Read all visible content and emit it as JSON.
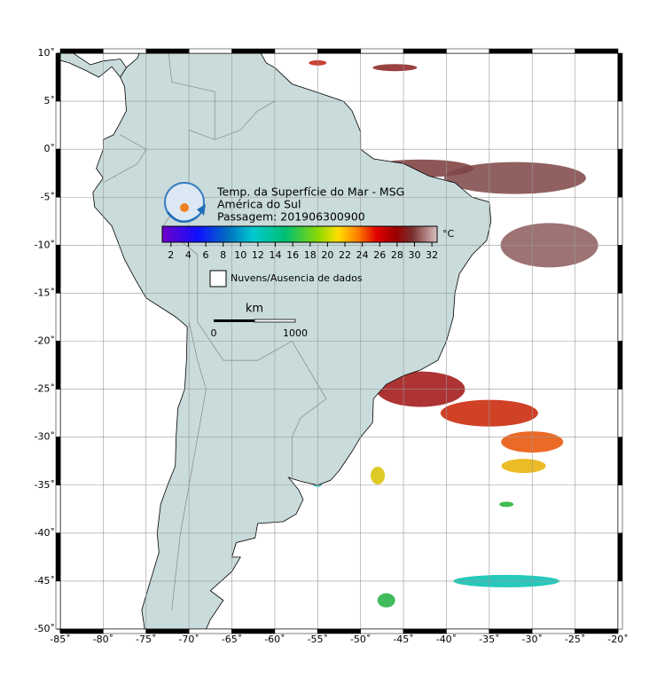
{
  "map": {
    "title_lines": [
      "Temp. da Superfície do Mar - MSG",
      "América do Sul",
      "Passagem: 201906300900"
    ],
    "colorbar": {
      "unit": "°C",
      "range": [
        1,
        32.6
      ],
      "ticks": [
        2,
        4,
        6,
        8,
        10,
        12,
        14,
        16,
        18,
        20,
        22,
        24,
        26,
        28,
        30,
        32
      ]
    },
    "legend": "Nuvens/Ausencia de dados",
    "scale_bar": {
      "unit": "km",
      "labels": [
        "0",
        "1000"
      ]
    },
    "lon_range": [
      -85,
      -20
    ],
    "lat_range": [
      -50,
      10
    ],
    "lon_ticks": [
      {
        "value": -85,
        "label": "-85˚"
      },
      {
        "value": -80,
        "label": "-80˚"
      },
      {
        "value": -75,
        "label": "-75˚"
      },
      {
        "value": -70,
        "label": "-70˚"
      },
      {
        "value": -65,
        "label": "-65˚"
      },
      {
        "value": -60,
        "label": "-60˚"
      },
      {
        "value": -55,
        "label": "-55˚"
      },
      {
        "value": -50,
        "label": "-50˚"
      },
      {
        "value": -45,
        "label": "-45˚"
      },
      {
        "value": -40,
        "label": "-40˚"
      },
      {
        "value": -35,
        "label": "-35˚"
      },
      {
        "value": -30,
        "label": "-30˚"
      },
      {
        "value": -25,
        "label": "-25˚"
      },
      {
        "value": -20,
        "label": "-20˚"
      }
    ],
    "lat_ticks": [
      {
        "value": 10,
        "label": "10˚"
      },
      {
        "value": 5,
        "label": "5˚"
      },
      {
        "value": 0,
        "label": "0˚"
      },
      {
        "value": -5,
        "label": "-5˚"
      },
      {
        "value": -10,
        "label": "-10˚"
      },
      {
        "value": -15,
        "label": "-15˚"
      },
      {
        "value": -20,
        "label": "-20˚"
      },
      {
        "value": -25,
        "label": "-25˚"
      },
      {
        "value": -30,
        "label": "-30˚"
      },
      {
        "value": -35,
        "label": "-35˚"
      },
      {
        "value": -40,
        "label": "-40˚"
      },
      {
        "value": -45,
        "label": "-45˚"
      },
      {
        "value": -50,
        "label": "-50˚"
      }
    ]
  }
}
